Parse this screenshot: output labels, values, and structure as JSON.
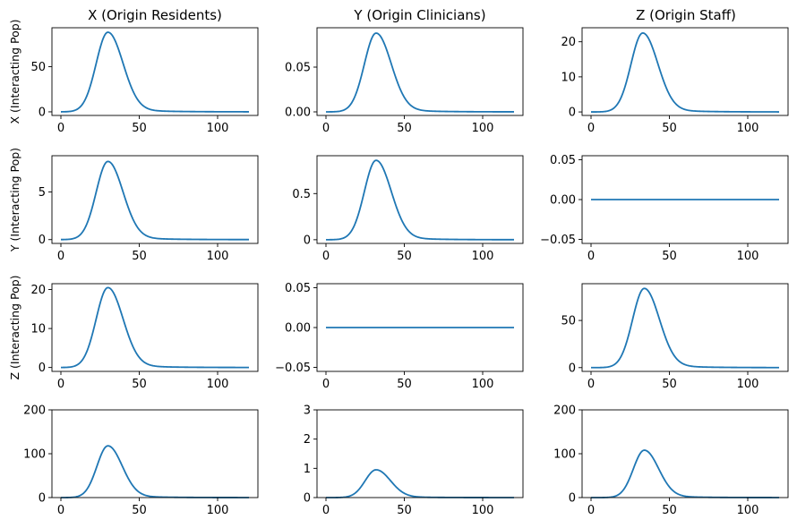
{
  "chart_data": {
    "type": "line",
    "columns": [
      "X (Origin Residents)",
      "Y (Origin Clinicians)",
      "Z (Origin Staff)"
    ],
    "rows": [
      "X (Interacting Pop)",
      "Y (Interacting Pop)",
      "Z (Interacting Pop)",
      ""
    ],
    "series_color": "#1f77b4",
    "x_range": [
      0,
      120
    ],
    "x_ticks": [
      0,
      50,
      100
    ],
    "panels": [
      {
        "row": 0,
        "col": 0,
        "peak": 88,
        "peak_x": 30,
        "width_left": 7.5,
        "width_right": 9.5,
        "ylim": [
          -4,
          93
        ],
        "yticks": [
          0,
          50
        ],
        "ytick_labels": [
          "0",
          "50"
        ]
      },
      {
        "row": 0,
        "col": 1,
        "peak": 0.088,
        "peak_x": 32,
        "width_left": 7.5,
        "width_right": 9.5,
        "ylim": [
          -0.004,
          0.094
        ],
        "yticks": [
          0,
          0.05
        ],
        "ytick_labels": [
          "0.00",
          "0.05"
        ]
      },
      {
        "row": 0,
        "col": 2,
        "peak": 22.5,
        "peak_x": 33,
        "width_left": 7.5,
        "width_right": 9.5,
        "ylim": [
          -1,
          24
        ],
        "yticks": [
          0,
          10,
          20
        ],
        "ytick_labels": [
          "0",
          "10",
          "20"
        ]
      },
      {
        "row": 1,
        "col": 0,
        "peak": 8.2,
        "peak_x": 30,
        "width_left": 7.5,
        "width_right": 9.5,
        "ylim": [
          -0.4,
          8.8
        ],
        "yticks": [
          0,
          5
        ],
        "ytick_labels": [
          "0",
          "5"
        ]
      },
      {
        "row": 1,
        "col": 1,
        "peak": 0.86,
        "peak_x": 32,
        "width_left": 7.5,
        "width_right": 9.5,
        "ylim": [
          -0.04,
          0.91
        ],
        "yticks": [
          0,
          0.5
        ],
        "ytick_labels": [
          "0",
          "0.5"
        ]
      },
      {
        "row": 1,
        "col": 2,
        "peak": 0,
        "peak_x": 33,
        "width_left": 7.5,
        "width_right": 9.5,
        "ylim": [
          -0.055,
          0.055
        ],
        "yticks": [
          -0.05,
          0,
          0.05
        ],
        "ytick_labels": [
          "−0.05",
          "0.00",
          "0.05"
        ]
      },
      {
        "row": 2,
        "col": 0,
        "peak": 20.5,
        "peak_x": 30,
        "width_left": 7.5,
        "width_right": 9.5,
        "ylim": [
          -1,
          21.5
        ],
        "yticks": [
          0,
          10,
          20
        ],
        "ytick_labels": [
          "0",
          "10",
          "20"
        ]
      },
      {
        "row": 2,
        "col": 1,
        "peak": 0,
        "peak_x": 32,
        "width_left": 7.5,
        "width_right": 9.5,
        "ylim": [
          -0.055,
          0.055
        ],
        "yticks": [
          -0.05,
          0,
          0.05
        ],
        "ytick_labels": [
          "−0.05",
          "0.00",
          "0.05"
        ]
      },
      {
        "row": 2,
        "col": 2,
        "peak": 84,
        "peak_x": 34,
        "width_left": 7.5,
        "width_right": 9.5,
        "ylim": [
          -4,
          89
        ],
        "yticks": [
          0,
          50
        ],
        "ytick_labels": [
          "0",
          "50"
        ]
      },
      {
        "row": 3,
        "col": 0,
        "peak": 118,
        "peak_x": 30,
        "width_left": 7,
        "width_right": 9,
        "ylim": [
          0,
          200
        ],
        "yticks": [
          0,
          100,
          200
        ],
        "ytick_labels": [
          "0",
          "100",
          "200"
        ]
      },
      {
        "row": 3,
        "col": 1,
        "peak": 0.95,
        "peak_x": 32,
        "width_left": 7,
        "width_right": 9,
        "ylim": [
          0,
          3
        ],
        "yticks": [
          0,
          1,
          2,
          3
        ],
        "ytick_labels": [
          "0",
          "1",
          "2",
          "3"
        ]
      },
      {
        "row": 3,
        "col": 2,
        "peak": 108,
        "peak_x": 34,
        "width_left": 7,
        "width_right": 9,
        "ylim": [
          0,
          200
        ],
        "yticks": [
          0,
          100,
          200
        ],
        "ytick_labels": [
          "0",
          "100",
          "200"
        ]
      }
    ]
  }
}
